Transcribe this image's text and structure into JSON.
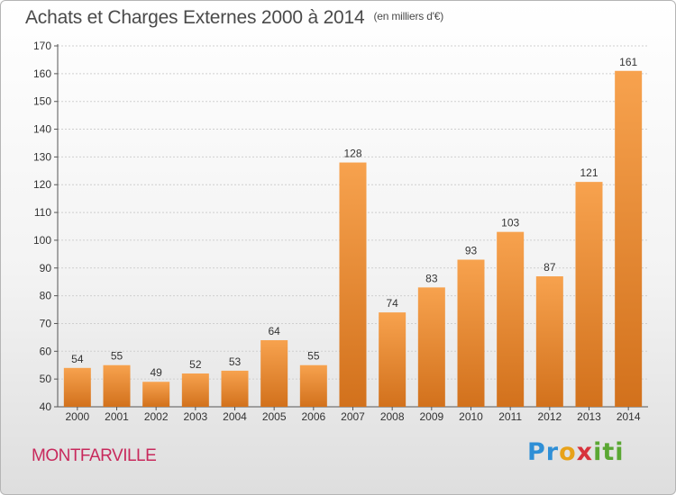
{
  "header": {
    "title": "Achats et Charges Externes 2000 à 2014",
    "subtitle": "(en milliers d'€)"
  },
  "footer": {
    "town": "MONTFARVILLE",
    "logo": {
      "text": "Proxiti",
      "colors": [
        "#2f8fd6",
        "#e8a219",
        "#d7323c",
        "#5aa733"
      ]
    }
  },
  "colors": {
    "bar_top": "#f7a24e",
    "bar_bottom": "#d2711c",
    "grid": "#cfcfcf",
    "text": "#333333"
  },
  "chart_data": {
    "type": "bar",
    "title": "Achats et Charges Externes 2000 à 2014",
    "subtitle": "(en milliers d'€)",
    "categories": [
      "2000",
      "2001",
      "2002",
      "2003",
      "2004",
      "2005",
      "2006",
      "2007",
      "2008",
      "2009",
      "2010",
      "2011",
      "2012",
      "2013",
      "2014"
    ],
    "values": [
      54,
      55,
      49,
      52,
      53,
      64,
      55,
      128,
      74,
      83,
      93,
      103,
      87,
      121,
      161
    ],
    "ylim": [
      40,
      170
    ],
    "yticks": [
      40,
      50,
      60,
      70,
      80,
      90,
      100,
      110,
      120,
      130,
      140,
      150,
      160,
      170
    ],
    "grid": true,
    "data_labels": true
  }
}
